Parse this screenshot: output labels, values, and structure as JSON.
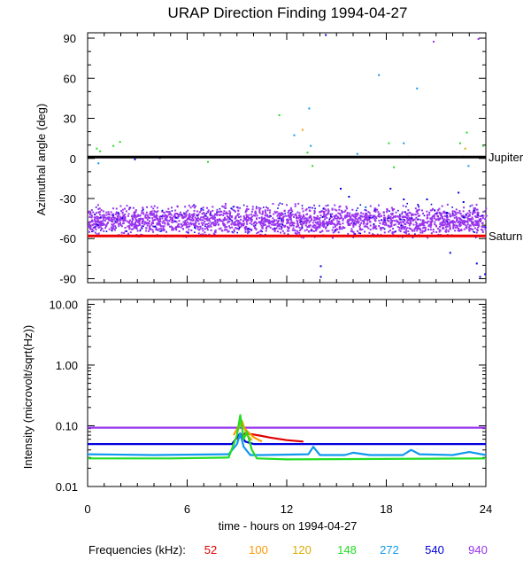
{
  "chart_data": {
    "title": "URAP Direction Finding  1994-04-27",
    "xlabel": "time - hours on 1994-04-27",
    "x_ticks": [
      0,
      6,
      12,
      18,
      24
    ],
    "xlim": [
      0,
      24
    ],
    "freq_legend_label": "Frequencies (kHz):",
    "frequencies": [
      {
        "value": "52",
        "color": "#e00000"
      },
      {
        "value": "100",
        "color": "#ff9900"
      },
      {
        "value": "120",
        "color": "#ddaa00"
      },
      {
        "value": "148",
        "color": "#22dd22"
      },
      {
        "value": "272",
        "color": "#1199ee"
      },
      {
        "value": "540",
        "color": "#0000dd"
      },
      {
        "value": "940",
        "color": "#9933ee"
      }
    ],
    "panels": [
      {
        "type": "scatter",
        "ylabel": "Azimuthal angle (deg)",
        "ylim": [
          -93,
          94
        ],
        "y_ticks": [
          90,
          60,
          30,
          0,
          -30,
          -60,
          -90
        ],
        "reference_lines": [
          {
            "label": "Jupiter",
            "value": 1,
            "color": "#000000"
          },
          {
            "label": "Saturn",
            "value": -58,
            "color": "#ee0000"
          }
        ],
        "dominant_band": {
          "frequency": "940",
          "center": -46,
          "spread": 7
        },
        "scattered_points": [
          {
            "f": "148",
            "x": 0.5,
            "y": 8
          },
          {
            "f": "148",
            "x": 0.7,
            "y": 6
          },
          {
            "f": "272",
            "x": 0.6,
            "y": -3
          },
          {
            "f": "148",
            "x": 1.5,
            "y": 10
          },
          {
            "f": "148",
            "x": 1.9,
            "y": 13
          },
          {
            "f": "540",
            "x": 2.8,
            "y": 0
          },
          {
            "f": "540",
            "x": 4.3,
            "y": 1
          },
          {
            "f": "148",
            "x": 7.2,
            "y": -2
          },
          {
            "f": "148",
            "x": 11.5,
            "y": 33
          },
          {
            "f": "272",
            "x": 12.4,
            "y": 18
          },
          {
            "f": "100",
            "x": 12.9,
            "y": 22
          },
          {
            "f": "272",
            "x": 13.3,
            "y": 38
          },
          {
            "f": "148",
            "x": 13.2,
            "y": 5
          },
          {
            "f": "272",
            "x": 13.4,
            "y": 10
          },
          {
            "f": "148",
            "x": 13.5,
            "y": -5
          },
          {
            "f": "540",
            "x": 14.0,
            "y": -88
          },
          {
            "f": "540",
            "x": 14.0,
            "y": -80
          },
          {
            "f": "540",
            "x": 14.3,
            "y": 93
          },
          {
            "f": "540",
            "x": 15.2,
            "y": -22
          },
          {
            "f": "540",
            "x": 15.7,
            "y": -28
          },
          {
            "f": "272",
            "x": 16.2,
            "y": 4
          },
          {
            "f": "148",
            "x": 18.1,
            "y": 12
          },
          {
            "f": "148",
            "x": 18.4,
            "y": -6
          },
          {
            "f": "272",
            "x": 17.5,
            "y": 63
          },
          {
            "f": "540",
            "x": 18.2,
            "y": -22
          },
          {
            "f": "540",
            "x": 19.0,
            "y": -30
          },
          {
            "f": "272",
            "x": 19.0,
            "y": 12
          },
          {
            "f": "272",
            "x": 19.3,
            "y": 2
          },
          {
            "f": "272",
            "x": 19.8,
            "y": 53
          },
          {
            "f": "940",
            "x": 20.8,
            "y": 88
          },
          {
            "f": "540",
            "x": 20.4,
            "y": -30
          },
          {
            "f": "540",
            "x": 21.6,
            "y": -40
          },
          {
            "f": "540",
            "x": 22.3,
            "y": -25
          },
          {
            "f": "540",
            "x": 22.6,
            "y": -32
          },
          {
            "f": "148",
            "x": 22.4,
            "y": 12
          },
          {
            "f": "148",
            "x": 22.6,
            "y": 2
          },
          {
            "f": "148",
            "x": 22.8,
            "y": 20
          },
          {
            "f": "120",
            "x": 22.7,
            "y": 8
          },
          {
            "f": "272",
            "x": 22.9,
            "y": -5
          },
          {
            "f": "940",
            "x": 23.5,
            "y": 90
          },
          {
            "f": "540",
            "x": 23.4,
            "y": -78
          },
          {
            "f": "540",
            "x": 23.6,
            "y": -88
          },
          {
            "f": "540",
            "x": 23.9,
            "y": -86
          },
          {
            "f": "148",
            "x": 23.8,
            "y": 10
          },
          {
            "f": "540",
            "x": 21.8,
            "y": -70
          },
          {
            "f": "272",
            "x": 16.7,
            "y": -36
          }
        ]
      },
      {
        "type": "line",
        "ylabel": "Intensity (microvolt/sqrt(Hz))",
        "yscale": "log",
        "ylim": [
          0.01,
          12
        ],
        "y_ticks": [
          "10.00",
          "1.00",
          "0.10",
          "0.01"
        ],
        "y_tick_values": [
          10,
          1,
          0.1,
          0.01
        ],
        "series": [
          {
            "f": "940",
            "x": [
              0,
              24
            ],
            "y": [
              0.093,
              0.093
            ]
          },
          {
            "f": "540",
            "x": [
              0,
              8.7,
              9.2,
              9.5,
              10,
              24
            ],
            "y": [
              0.05,
              0.05,
              0.075,
              0.055,
              0.05,
              0.05
            ]
          },
          {
            "f": "52",
            "x": [
              9.0,
              9.5,
              10.0,
              10.5,
              11.0,
              12.0,
              13.0
            ],
            "y": [
              0.06,
              0.075,
              0.072,
              0.068,
              0.064,
              0.058,
              0.055
            ]
          },
          {
            "f": "100",
            "x": [
              8.8,
              9.2,
              9.6,
              10.0,
              10.5
            ],
            "y": [
              0.07,
              0.11,
              0.082,
              0.065,
              0.055
            ]
          },
          {
            "f": "120",
            "x": [
              9.0,
              9.3,
              9.6,
              9.9
            ],
            "y": [
              0.08,
              0.12,
              0.07,
              0.058
            ]
          },
          {
            "f": "272",
            "x": [
              0,
              4,
              8.5,
              9.0,
              9.2,
              9.4,
              9.8,
              10.5,
              13.3,
              13.6,
              14,
              15.5,
              16,
              17,
              19,
              19.5,
              20,
              22,
              23,
              24
            ],
            "y": [
              0.034,
              0.033,
              0.034,
              0.05,
              0.075,
              0.045,
              0.033,
              0.033,
              0.034,
              0.045,
              0.033,
              0.033,
              0.036,
              0.033,
              0.033,
              0.04,
              0.034,
              0.033,
              0.037,
              0.033
            ]
          },
          {
            "f": "148",
            "x": [
              0,
              5,
              8.5,
              9.0,
              9.2,
              9.4,
              9.6,
              9.9,
              10.2,
              12,
              24
            ],
            "y": [
              0.029,
              0.029,
              0.03,
              0.07,
              0.15,
              0.06,
              0.08,
              0.04,
              0.029,
              0.028,
              0.029
            ]
          }
        ]
      }
    ]
  }
}
